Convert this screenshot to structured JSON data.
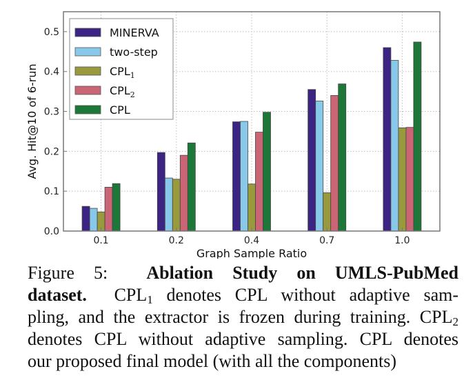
{
  "chart_data": {
    "type": "bar",
    "title": "",
    "xlabel": "Graph Sample Ratio",
    "ylabel": "Avg. Hit@10 of 6-run",
    "categories": [
      "0.1",
      "0.2",
      "0.4",
      "0.7",
      "1.0"
    ],
    "yticks": [
      "0.0",
      "0.1",
      "0.2",
      "0.3",
      "0.4",
      "0.5"
    ],
    "ytick_values": [
      0.0,
      0.1,
      0.2,
      0.3,
      0.4,
      0.5
    ],
    "ylim": [
      0,
      0.55
    ],
    "grid": true,
    "legend_position": "top-left",
    "series": [
      {
        "name": "MINERVA",
        "label_base": "MINERVA",
        "label_sub": "",
        "color": "#3b2484",
        "values": [
          0.062,
          0.197,
          0.274,
          0.355,
          0.46
        ]
      },
      {
        "name": "two-step",
        "label_base": "two-step",
        "label_sub": "",
        "color": "#88c9ea",
        "values": [
          0.057,
          0.133,
          0.275,
          0.326,
          0.428
        ]
      },
      {
        "name": "CPL1",
        "label_base": "CPL",
        "label_sub": "1",
        "color": "#989a3d",
        "values": [
          0.048,
          0.13,
          0.118,
          0.096,
          0.259
        ]
      },
      {
        "name": "CPL2",
        "label_base": "CPL",
        "label_sub": "2",
        "color": "#c96575",
        "values": [
          0.11,
          0.19,
          0.248,
          0.34,
          0.26
        ]
      },
      {
        "name": "CPL",
        "label_base": "CPL",
        "label_sub": "",
        "color": "#1d7739",
        "values": [
          0.119,
          0.221,
          0.298,
          0.369,
          0.474
        ]
      }
    ]
  },
  "caption": {
    "figure_label": "Figure 5:",
    "bold_title_1": "Ablation Study on UMLS-PubMed",
    "bold_title_2": "dataset.",
    "line2_a": "CPL",
    "line2_sub": "1",
    "line2_b": " denotes CPL without adaptive sam-",
    "line3_a": "pling, and the extractor is frozen during training. CPL",
    "line3_sub": "2",
    "line4": "denotes CPL without adaptive sampling. CPL denotes",
    "line5": "our proposed final model (with all the components)"
  }
}
